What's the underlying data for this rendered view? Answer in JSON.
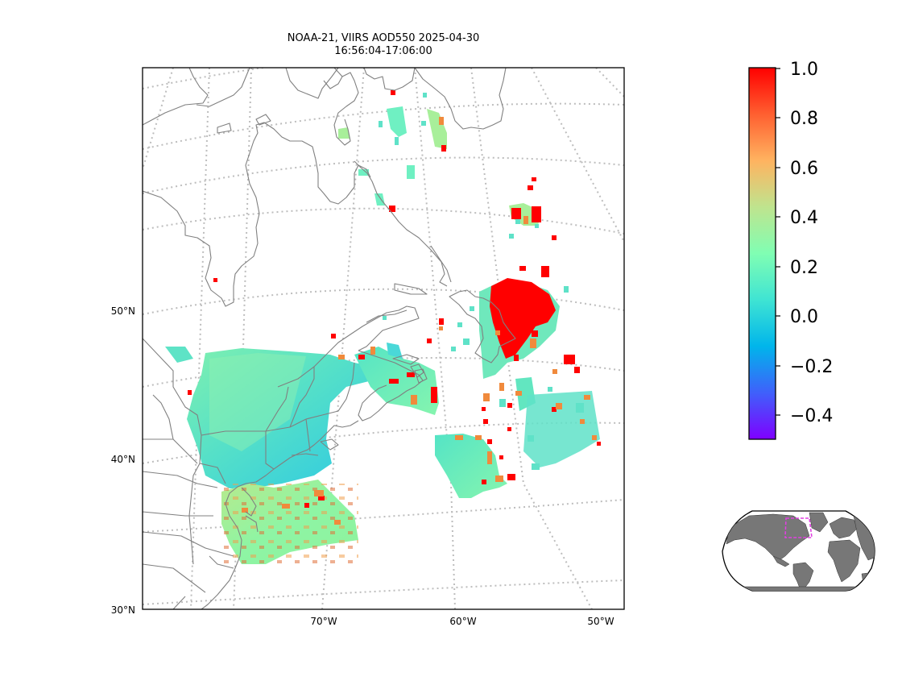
{
  "figure": {
    "title_line1": "NOAA-21, VIIRS AOD550 2025-04-30",
    "title_line2": "16:56:04-17:06:00"
  },
  "map": {
    "projection": "conic",
    "lat_labels": [
      "50°N",
      "40°N",
      "30°N"
    ],
    "lon_labels": [
      "70°W",
      "60°W",
      "50°W"
    ],
    "gridlines": true,
    "coastline_color": "#808080",
    "land_fill": false
  },
  "colorbar": {
    "tick_labels": [
      "1.0",
      "0.8",
      "0.6",
      "0.4",
      "0.2",
      "0.0",
      "−0.2",
      "−0.4"
    ],
    "colormap": "rainbow",
    "vmin": -0.5,
    "vmax": 1.0,
    "colors": [
      "#7f00ff",
      "#3f60fb",
      "#00b5eb",
      "#3fe4d3",
      "#80feb3",
      "#bfe48e",
      "#ffb360",
      "#ff5f30",
      "#ff0000"
    ]
  },
  "inset": {
    "region_box_color": "#e040e0",
    "land_color": "#808080"
  }
}
